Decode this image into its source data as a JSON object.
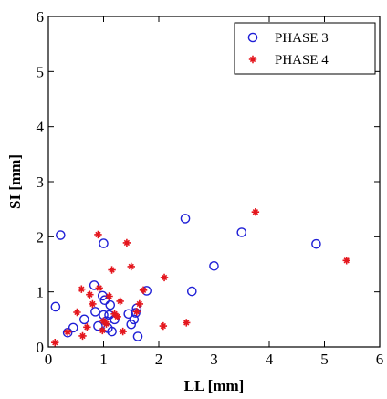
{
  "chart_data": {
    "type": "scatter",
    "title": "",
    "xlabel": "LL [mm]",
    "ylabel": "SI [mm]",
    "xlim": [
      0,
      6
    ],
    "ylim": [
      0,
      6
    ],
    "xticks": [
      0,
      1,
      2,
      3,
      4,
      5,
      6
    ],
    "yticks": [
      0,
      1,
      2,
      3,
      4,
      5,
      6
    ],
    "grid": false,
    "legend_position": "top-right",
    "series": [
      {
        "name": "PHASE 3",
        "marker": "circle",
        "color": "#1f1fd6",
        "points": [
          [
            0.13,
            0.73
          ],
          [
            0.22,
            2.03
          ],
          [
            0.35,
            0.26
          ],
          [
            0.45,
            0.35
          ],
          [
            0.65,
            0.5
          ],
          [
            0.83,
            1.12
          ],
          [
            0.85,
            0.64
          ],
          [
            0.9,
            0.38
          ],
          [
            0.98,
            0.93
          ],
          [
            1.0,
            0.58
          ],
          [
            1.02,
            0.85
          ],
          [
            1.0,
            1.88
          ],
          [
            1.05,
            0.47
          ],
          [
            1.08,
            0.34
          ],
          [
            1.1,
            0.58
          ],
          [
            1.12,
            0.76
          ],
          [
            1.15,
            0.28
          ],
          [
            1.2,
            0.5
          ],
          [
            1.45,
            0.6
          ],
          [
            1.5,
            0.41
          ],
          [
            1.55,
            0.5
          ],
          [
            1.58,
            0.62
          ],
          [
            1.6,
            0.7
          ],
          [
            1.62,
            0.19
          ],
          [
            1.78,
            1.02
          ],
          [
            2.48,
            2.33
          ],
          [
            2.6,
            1.01
          ],
          [
            3.0,
            1.47
          ],
          [
            3.5,
            2.08
          ],
          [
            4.85,
            1.87
          ]
        ]
      },
      {
        "name": "PHASE 4",
        "marker": "star",
        "color": "#e4161d",
        "points": [
          [
            0.12,
            0.08
          ],
          [
            0.35,
            0.27
          ],
          [
            0.52,
            0.63
          ],
          [
            0.6,
            1.05
          ],
          [
            0.62,
            0.2
          ],
          [
            0.7,
            0.36
          ],
          [
            0.75,
            0.95
          ],
          [
            0.8,
            0.78
          ],
          [
            0.9,
            2.04
          ],
          [
            0.92,
            1.07
          ],
          [
            0.98,
            0.3
          ],
          [
            1.0,
            0.47
          ],
          [
            1.05,
            0.42
          ],
          [
            1.1,
            0.92
          ],
          [
            1.15,
            1.4
          ],
          [
            1.2,
            0.6
          ],
          [
            1.25,
            0.55
          ],
          [
            1.3,
            0.83
          ],
          [
            1.35,
            0.28
          ],
          [
            1.42,
            1.89
          ],
          [
            1.5,
            1.46
          ],
          [
            1.6,
            0.64
          ],
          [
            1.65,
            0.78
          ],
          [
            1.72,
            1.03
          ],
          [
            2.08,
            0.38
          ],
          [
            2.1,
            1.26
          ],
          [
            2.5,
            0.44
          ],
          [
            3.75,
            2.45
          ],
          [
            5.4,
            1.57
          ]
        ]
      }
    ]
  }
}
